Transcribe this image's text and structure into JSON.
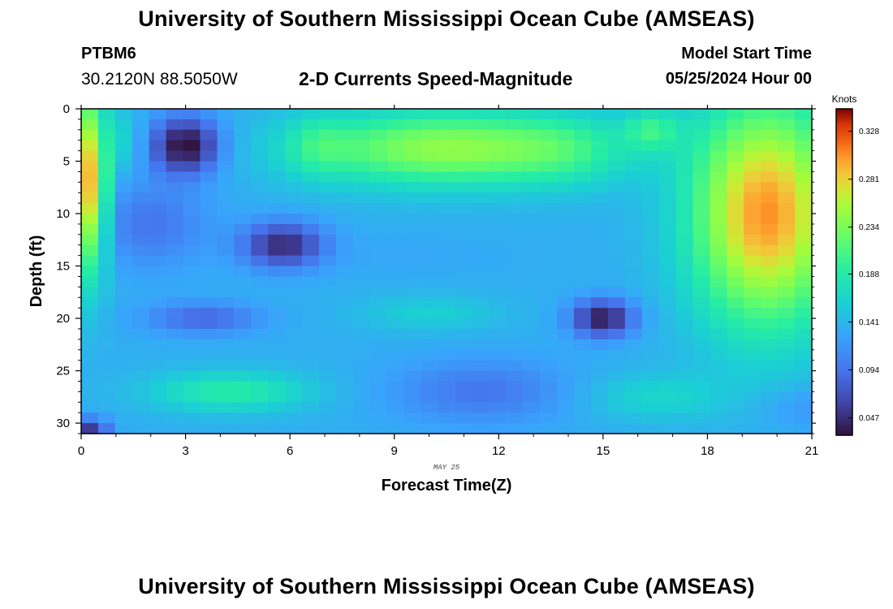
{
  "header": {
    "title": "University of Southern Mississippi Ocean Cube (AMSEAS)",
    "station_id": "PTBM6",
    "coordinates": "30.2120N  88.5050W",
    "subtitle": "2-D Currents Speed-Magnitude",
    "model_start_label": "Model Start Time",
    "model_start_value": "05/25/2024 Hour 00"
  },
  "footer": {
    "title": "University of Southern Mississippi Ocean Cube (AMSEAS)"
  },
  "chart_data": {
    "type": "heatmap",
    "title": "2-D Currents Speed-Magnitude",
    "xlabel": "Forecast Time(Z)",
    "ylabel": "Depth (ft)",
    "date_label": "MAY 25",
    "xlim": [
      0,
      21
    ],
    "ylim": [
      0,
      31
    ],
    "xticks": [
      0,
      3,
      6,
      9,
      12,
      15,
      18,
      21
    ],
    "yticks": [
      0,
      5,
      10,
      15,
      20,
      25,
      30
    ],
    "colorbar": {
      "label": "Knots",
      "min": 0.03,
      "max": 0.35,
      "ticks": [
        "0.328",
        "0.281",
        "0.234",
        "0.188",
        "0.141",
        "0.094",
        "0.047"
      ]
    },
    "grid_cols": 43,
    "grid_rows": 31,
    "field": {
      "base": 0.135,
      "blobs": [
        {
          "x": 0.3,
          "y": 7,
          "sx": 0.45,
          "sy": 8.5,
          "a": 0.16
        },
        {
          "x": 3.0,
          "y": 3.5,
          "sx": 1.0,
          "sy": 2.8,
          "a": -0.11
        },
        {
          "x": 2.0,
          "y": 11,
          "sx": 1.6,
          "sy": 4,
          "a": -0.04
        },
        {
          "x": 5.8,
          "y": 13,
          "sx": 1.2,
          "sy": 2.2,
          "a": -0.09
        },
        {
          "x": 10.5,
          "y": 3.8,
          "sx": 4.0,
          "sy": 3.5,
          "a": 0.11
        },
        {
          "x": 6.8,
          "y": 3.5,
          "sx": 0.9,
          "sy": 3.0,
          "a": 0.03
        },
        {
          "x": 14.0,
          "y": 4.0,
          "sx": 1.8,
          "sy": 3.5,
          "a": 0.03
        },
        {
          "x": 19.7,
          "y": 10,
          "sx": 2.1,
          "sy": 10.5,
          "a": 0.17
        },
        {
          "x": 16.4,
          "y": 2.0,
          "sx": 0.8,
          "sy": 2.0,
          "a": 0.05
        },
        {
          "x": 15.0,
          "y": 20,
          "sx": 0.9,
          "sy": 1.8,
          "a": -0.1
        },
        {
          "x": 3.5,
          "y": 20,
          "sx": 1.6,
          "sy": 1.5,
          "a": -0.05
        },
        {
          "x": 4.3,
          "y": 27,
          "sx": 2.3,
          "sy": 1.9,
          "a": 0.055
        },
        {
          "x": 16.5,
          "y": 27.5,
          "sx": 2.0,
          "sy": 2.2,
          "a": 0.03
        },
        {
          "x": 11.5,
          "y": 27,
          "sx": 2.5,
          "sy": 3.0,
          "a": -0.04
        },
        {
          "x": 10.0,
          "y": 19.5,
          "sx": 2.0,
          "sy": 1.7,
          "a": 0.025
        },
        {
          "x": 9.5,
          "y": 14.0,
          "sx": 3.0,
          "sy": 2.0,
          "a": -0.005
        },
        {
          "x": 0.3,
          "y": 30.5,
          "sx": 0.5,
          "sy": 1.0,
          "a": -0.08
        },
        {
          "x": 21.0,
          "y": 28.5,
          "sx": 1.5,
          "sy": 2.0,
          "a": -0.02
        },
        {
          "x": 1.3,
          "y": 3.0,
          "sx": 0.4,
          "sy": 3.0,
          "a": 0.03
        }
      ]
    }
  }
}
